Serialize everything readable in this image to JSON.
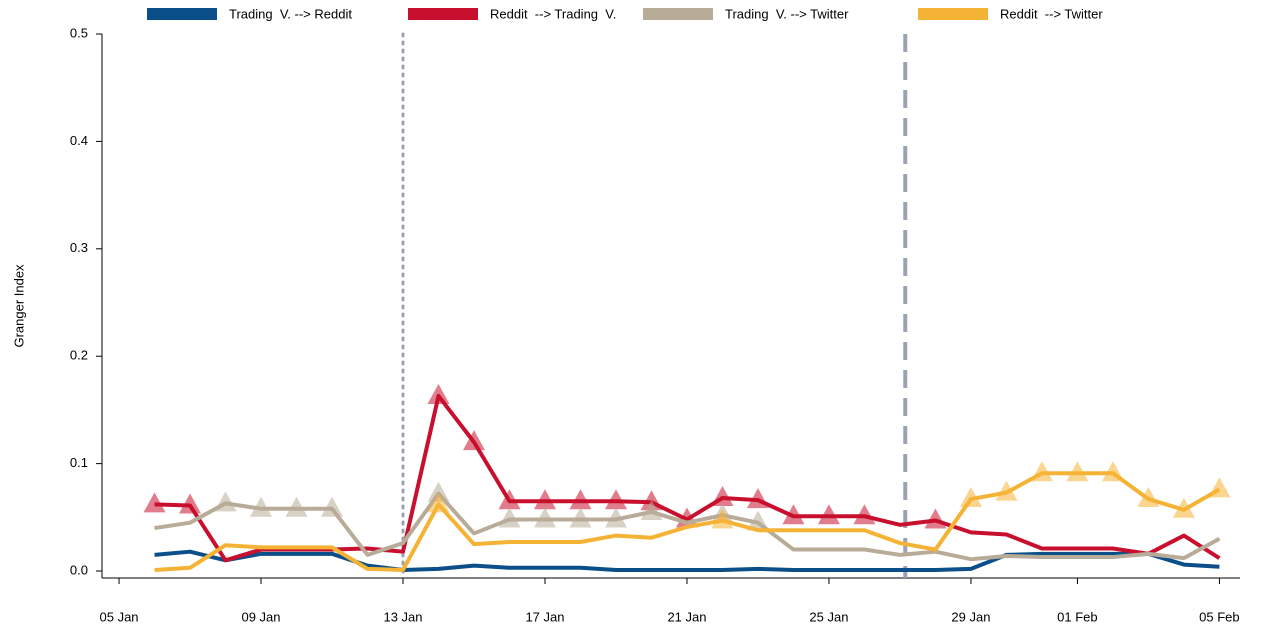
{
  "chart_data": {
    "type": "line",
    "ylabel": "Granger Index",
    "x": [
      6,
      7,
      8,
      9,
      10,
      11,
      12,
      13,
      14,
      15,
      16,
      17,
      18,
      19,
      20,
      21,
      22,
      23,
      24,
      25,
      26,
      27,
      28,
      29,
      30,
      31,
      32,
      33,
      34,
      35,
      36
    ],
    "xlim": [
      4.52,
      36.58
    ],
    "xticks": [
      {
        "value": 5,
        "label": "05 Jan"
      },
      {
        "value": 9,
        "label": "09 Jan"
      },
      {
        "value": 13,
        "label": "13 Jan"
      },
      {
        "value": 17,
        "label": "17 Jan"
      },
      {
        "value": 21,
        "label": "21 Jan"
      },
      {
        "value": 25,
        "label": "25 Jan"
      },
      {
        "value": 29,
        "label": "29 Jan"
      },
      {
        "value": 32,
        "label": "01 Feb"
      },
      {
        "value": 36,
        "label": "05 Feb"
      }
    ],
    "ylim": [
      -0.0065,
      0.5
    ],
    "yticks": [
      {
        "value": 0,
        "label": "0.0"
      },
      0.1,
      0.2,
      0.3,
      0.4,
      0.5
    ],
    "vlines": [
      {
        "x": 13,
        "style": "dotted",
        "color": "#9aa0b0"
      },
      {
        "x": 27.15,
        "style": "dashed",
        "color": "#9aa3b5"
      }
    ],
    "series": [
      {
        "name": "Trading  V. --> Reddit",
        "color": "#0b4f8a",
        "values": [
          0.015,
          0.018,
          0.01,
          0.016,
          0.016,
          0.016,
          0.005,
          0.001,
          0.002,
          0.005,
          0.003,
          0.003,
          0.003,
          0.001,
          0.001,
          0.001,
          0.001,
          0.002,
          0.001,
          0.001,
          0.001,
          0.001,
          0.001,
          0.002,
          0.015,
          0.016,
          0.016,
          0.016,
          0.016,
          0.006,
          0.004
        ],
        "significant": [
          false,
          false,
          false,
          false,
          false,
          false,
          false,
          false,
          false,
          false,
          false,
          false,
          false,
          false,
          false,
          false,
          false,
          false,
          false,
          false,
          false,
          false,
          false,
          false,
          false,
          false,
          false,
          false,
          false,
          false,
          false
        ]
      },
      {
        "name": "Reddit  --> Trading  V.",
        "color": "#c8102e",
        "values": [
          0.062,
          0.061,
          0.01,
          0.02,
          0.02,
          0.02,
          0.021,
          0.018,
          0.163,
          0.12,
          0.065,
          0.065,
          0.065,
          0.065,
          0.064,
          0.048,
          0.068,
          0.066,
          0.051,
          0.051,
          0.051,
          0.043,
          0.047,
          0.036,
          0.034,
          0.021,
          0.021,
          0.021,
          0.016,
          0.033,
          0.012
        ],
        "significant": [
          true,
          true,
          false,
          false,
          false,
          false,
          false,
          false,
          true,
          true,
          true,
          true,
          true,
          true,
          true,
          true,
          true,
          true,
          true,
          true,
          true,
          false,
          true,
          false,
          false,
          false,
          false,
          false,
          false,
          false,
          false
        ]
      },
      {
        "name": "Trading  V. --> Twitter",
        "color": "#b8ac98",
        "values": [
          0.04,
          0.045,
          0.063,
          0.058,
          0.058,
          0.058,
          0.015,
          0.026,
          0.072,
          0.035,
          0.048,
          0.048,
          0.048,
          0.048,
          0.055,
          0.045,
          0.052,
          0.045,
          0.02,
          0.02,
          0.02,
          0.015,
          0.018,
          0.011,
          0.014,
          0.013,
          0.013,
          0.013,
          0.016,
          0.012,
          0.03
        ],
        "significant": [
          false,
          false,
          true,
          true,
          true,
          true,
          false,
          false,
          true,
          false,
          true,
          true,
          true,
          true,
          true,
          false,
          true,
          true,
          false,
          false,
          false,
          false,
          false,
          false,
          false,
          false,
          false,
          false,
          false,
          false,
          false
        ]
      },
      {
        "name": "Reddit  --> Twitter",
        "color": "#f5b335",
        "values": [
          0.001,
          0.003,
          0.024,
          0.022,
          0.022,
          0.022,
          0.002,
          0.001,
          0.062,
          0.025,
          0.027,
          0.027,
          0.027,
          0.033,
          0.031,
          0.041,
          0.047,
          0.038,
          0.038,
          0.038,
          0.038,
          0.026,
          0.02,
          0.067,
          0.073,
          0.091,
          0.091,
          0.091,
          0.067,
          0.057,
          0.076
        ],
        "significant": [
          false,
          false,
          false,
          false,
          false,
          false,
          false,
          false,
          true,
          false,
          false,
          false,
          false,
          false,
          false,
          false,
          true,
          false,
          false,
          false,
          false,
          false,
          false,
          true,
          true,
          true,
          true,
          true,
          true,
          true,
          true
        ]
      }
    ]
  }
}
